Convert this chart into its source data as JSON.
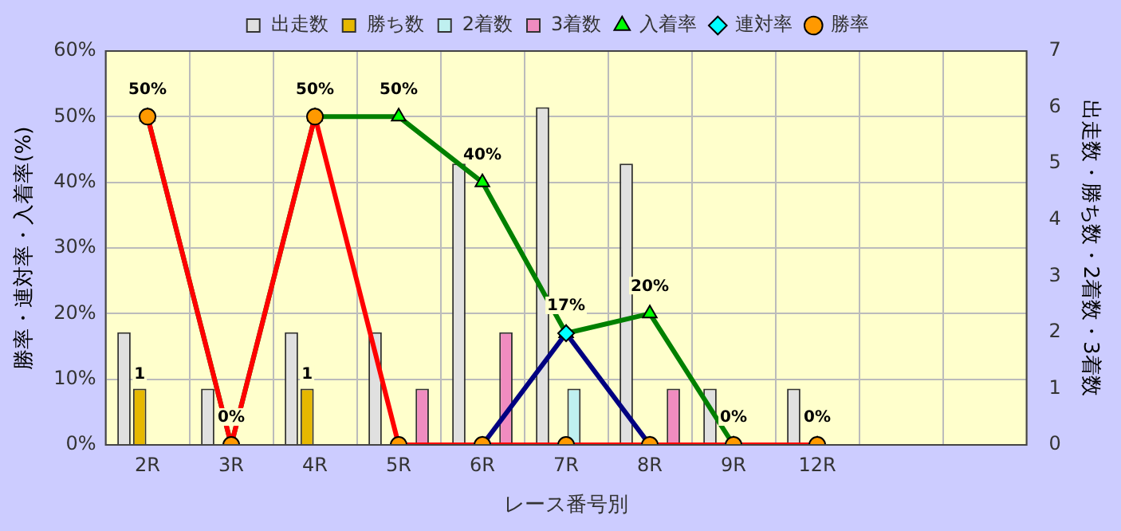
{
  "chart_data": {
    "type": "bar",
    "xlabel": "レース番号別",
    "ylabel": "勝率・連対率・入着率(%)",
    "y2label": "出走数・勝ち数・2着数・3着数",
    "categories": [
      "2R",
      "3R",
      "4R",
      "5R",
      "6R",
      "7R",
      "8R",
      "9R",
      "12R",
      null,
      null
    ],
    "series": [
      {
        "name": "出走数",
        "axis": "y2",
        "color": "#e0e0e0",
        "values": [
          2,
          1,
          2,
          2,
          5,
          6,
          5,
          1,
          1,
          null,
          null
        ]
      },
      {
        "name": "勝ち数",
        "axis": "y2",
        "color": "#e6b800",
        "values": [
          1,
          0,
          1,
          0,
          0,
          0,
          0,
          0,
          0,
          null,
          null
        ],
        "value_labels": [
          "1",
          null,
          "1",
          null,
          null,
          null,
          null,
          null,
          null,
          null,
          null
        ]
      },
      {
        "name": "2着数",
        "axis": "y2",
        "color": "#bff0f0",
        "values": [
          0,
          0,
          0,
          0,
          0,
          1,
          0,
          0,
          0,
          null,
          null
        ]
      },
      {
        "name": "3着数",
        "axis": "y2",
        "color": "#f08cc0",
        "values": [
          0,
          0,
          0,
          1,
          2,
          0,
          1,
          0,
          0,
          null,
          null
        ]
      },
      {
        "name": "入着率",
        "type": "line",
        "color": "#008000",
        "marker": "triangle",
        "values": [
          50,
          0,
          50,
          50,
          40,
          17,
          20,
          0,
          0,
          null,
          null
        ],
        "value_labels": [
          "50%",
          "0%",
          "50%",
          "50%",
          "40%",
          "17%",
          "20%",
          "0%",
          "0%",
          null,
          null
        ]
      },
      {
        "name": "連対率",
        "type": "line",
        "color": "#000080",
        "marker": "diamond",
        "values": [
          null,
          null,
          null,
          null,
          0,
          17,
          0,
          null,
          null,
          null,
          null
        ]
      },
      {
        "name": "勝率",
        "type": "line",
        "color": "#ff0000",
        "marker": "circle",
        "values": [
          50,
          0,
          50,
          0,
          0,
          0,
          0,
          0,
          0,
          null,
          null
        ]
      }
    ],
    "ylim": [
      0,
      60
    ],
    "yticks": [
      {
        "value": 0,
        "label": "0%"
      },
      {
        "value": 10,
        "label": "10%"
      },
      {
        "value": 20,
        "label": "20%"
      },
      {
        "value": 30,
        "label": "30%"
      },
      {
        "value": 40,
        "label": "40%"
      },
      {
        "value": 50,
        "label": "50%"
      },
      {
        "value": 60,
        "label": "60%"
      }
    ],
    "y2lim": [
      0,
      7
    ],
    "y2ticks": [
      0,
      1,
      2,
      3,
      4,
      5,
      6,
      7
    ],
    "grid": true,
    "legend": "top"
  }
}
